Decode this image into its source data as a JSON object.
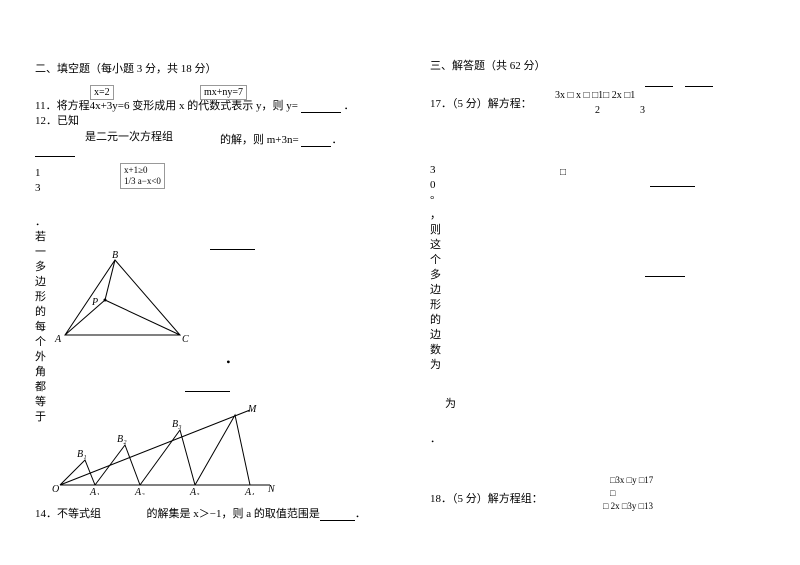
{
  "left": {
    "section2": "二、填空题（每小题 3 分，共 18 分）",
    "q11_a": "11．将方程",
    "q11_eq": "4x+3y=6 变形成用 x 的代数式表示 y，则 y=",
    "q11_box1": "x=2",
    "q11_box2": "mx+ny=7",
    "q12_a": "12．已知",
    "q12_b": "是二元一次方程组",
    "q12_c": "的解，则 m+3n=",
    "q13_num1": "1",
    "q13_num2": "3",
    "q13_box_l1": "x+1≥0",
    "q13_box_l2": "1/3 a−x<0",
    "vtext1": [
      "．",
      "若",
      "一",
      "多",
      "边",
      "形",
      "的",
      "每",
      "个",
      "外",
      "角",
      "都",
      "等",
      "于"
    ],
    "vtext2": [
      "3",
      "0",
      "°",
      "，",
      "则",
      "这",
      "个",
      "多",
      "边",
      "形",
      "的",
      "边",
      "数",
      "",
      "为",
      ""
    ],
    "tri": {
      "A": "A",
      "B": "B",
      "C": "C",
      "P": "P"
    },
    "zig": {
      "O": "O",
      "N": "N",
      "M": "M",
      "A1": "A₁",
      "A2": "A₂",
      "A3": "A₃",
      "A4": "A₄",
      "B1": "B₁",
      "B2": "B₂",
      "B3": "B₃"
    },
    "q14": "14．不等式组",
    "q14_b": "的解集是 x＞−1，则 a 的取值范围是",
    "tail": "．"
  },
  "right": {
    "section3": "三、解答题（共 62 分）",
    "q17_a": "17．（5 分）解方程：",
    "q17_eq_l": "3x □",
    "q17_eq_m": "x □",
    "q17_eq_r": "□1□",
    "q17_eq_n1": "2x □1",
    "q17_eq_d1": "2",
    "q17_eq_d2": "3",
    "sq": "□",
    "q18_a": "18．（5 分）解方程组：",
    "q18_l1": "□3x □y □17",
    "q18_l2": "□",
    "q18_l3": "□ 2x □3y □13",
    "tail": "．"
  },
  "blank_widths": {
    "short": 40,
    "med": 55
  }
}
